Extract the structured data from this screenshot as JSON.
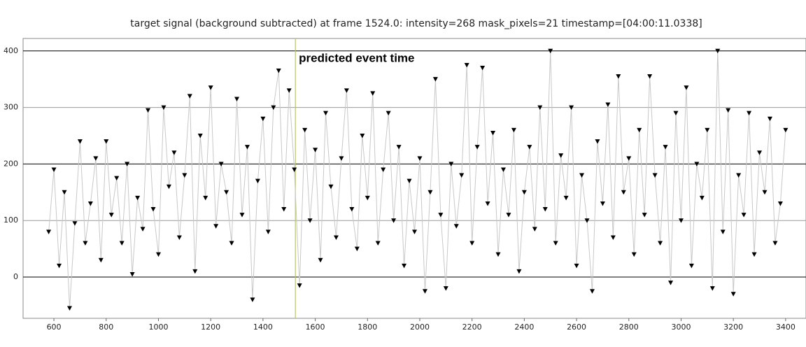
{
  "chart_data": {
    "type": "line",
    "title": "target signal (background subtracted) at frame 1524.0: intensity=268 mask_pixels=21 timestamp=[04:00:11.0338]",
    "x": [
      580,
      600,
      620,
      640,
      660,
      680,
      700,
      720,
      740,
      760,
      780,
      800,
      820,
      840,
      860,
      880,
      900,
      920,
      940,
      960,
      980,
      1000,
      1020,
      1040,
      1060,
      1080,
      1100,
      1120,
      1140,
      1160,
      1180,
      1200,
      1220,
      1240,
      1260,
      1280,
      1300,
      1320,
      1340,
      1360,
      1380,
      1400,
      1420,
      1440,
      1460,
      1480,
      1500,
      1520,
      1540,
      1560,
      1580,
      1600,
      1620,
      1640,
      1660,
      1680,
      1700,
      1720,
      1740,
      1760,
      1780,
      1800,
      1820,
      1840,
      1860,
      1880,
      1900,
      1920,
      1940,
      1960,
      1980,
      2000,
      2020,
      2040,
      2060,
      2080,
      2100,
      2120,
      2140,
      2160,
      2180,
      2200,
      2220,
      2240,
      2260,
      2280,
      2300,
      2320,
      2340,
      2360,
      2380,
      2400,
      2420,
      2440,
      2460,
      2480,
      2500,
      2520,
      2540,
      2560,
      2580,
      2600,
      2620,
      2640,
      2660,
      2680,
      2700,
      2720,
      2740,
      2760,
      2780,
      2800,
      2820,
      2840,
      2860,
      2880,
      2900,
      2920,
      2940,
      2960,
      2980,
      3000,
      3020,
      3040,
      3060,
      3080,
      3100,
      3120,
      3140,
      3160,
      3180,
      3200,
      3220,
      3240,
      3260,
      3280,
      3300,
      3320,
      3340,
      3360,
      3380,
      3400
    ],
    "series": [
      {
        "color": "#000000",
        "line_color": "#c8c8c8",
        "values": [
          80,
          190,
          20,
          150,
          -55,
          95,
          240,
          60,
          130,
          210,
          30,
          240,
          110,
          175,
          60,
          200,
          5,
          140,
          85,
          295,
          120,
          40,
          300,
          160,
          220,
          70,
          180,
          320,
          10,
          250,
          140,
          335,
          90,
          200,
          150,
          60,
          315,
          110,
          230,
          -40,
          170,
          280,
          80,
          300,
          365,
          120,
          330,
          190,
          -15,
          260,
          100,
          225,
          30,
          290,
          160,
          70,
          210,
          330,
          120,
          50,
          250,
          140,
          325,
          60,
          190,
          290,
          100,
          230,
          20,
          170,
          80,
          210,
          -25,
          150,
          350,
          110,
          -20,
          200,
          90,
          180,
          375,
          60,
          230,
          370,
          130,
          255,
          40,
          190,
          110,
          260,
          10,
          150,
          230,
          85,
          300,
          120,
          400,
          60,
          215,
          140,
          300,
          20,
          180,
          100,
          -25,
          240,
          130,
          305,
          70,
          355,
          150,
          210,
          40,
          260,
          110,
          355,
          180,
          60,
          230,
          -10,
          290,
          100,
          335,
          20,
          200,
          140,
          260,
          -20,
          400,
          80,
          295,
          -30,
          180,
          110,
          290,
          40,
          220,
          150,
          280,
          60,
          130,
          260
        ]
      }
    ],
    "xlim": [
      482,
      3478
    ],
    "ylim": [
      -73,
      422
    ],
    "xticks": [
      600,
      800,
      1000,
      1200,
      1400,
      1600,
      1800,
      2000,
      2200,
      2400,
      2600,
      2800,
      3000,
      3200,
      3400
    ],
    "yticks": [
      0,
      100,
      200,
      300,
      400
    ],
    "grid": true,
    "event_line": {
      "x": 1524,
      "color": "#b5c76a",
      "label": "predicted event time"
    }
  }
}
